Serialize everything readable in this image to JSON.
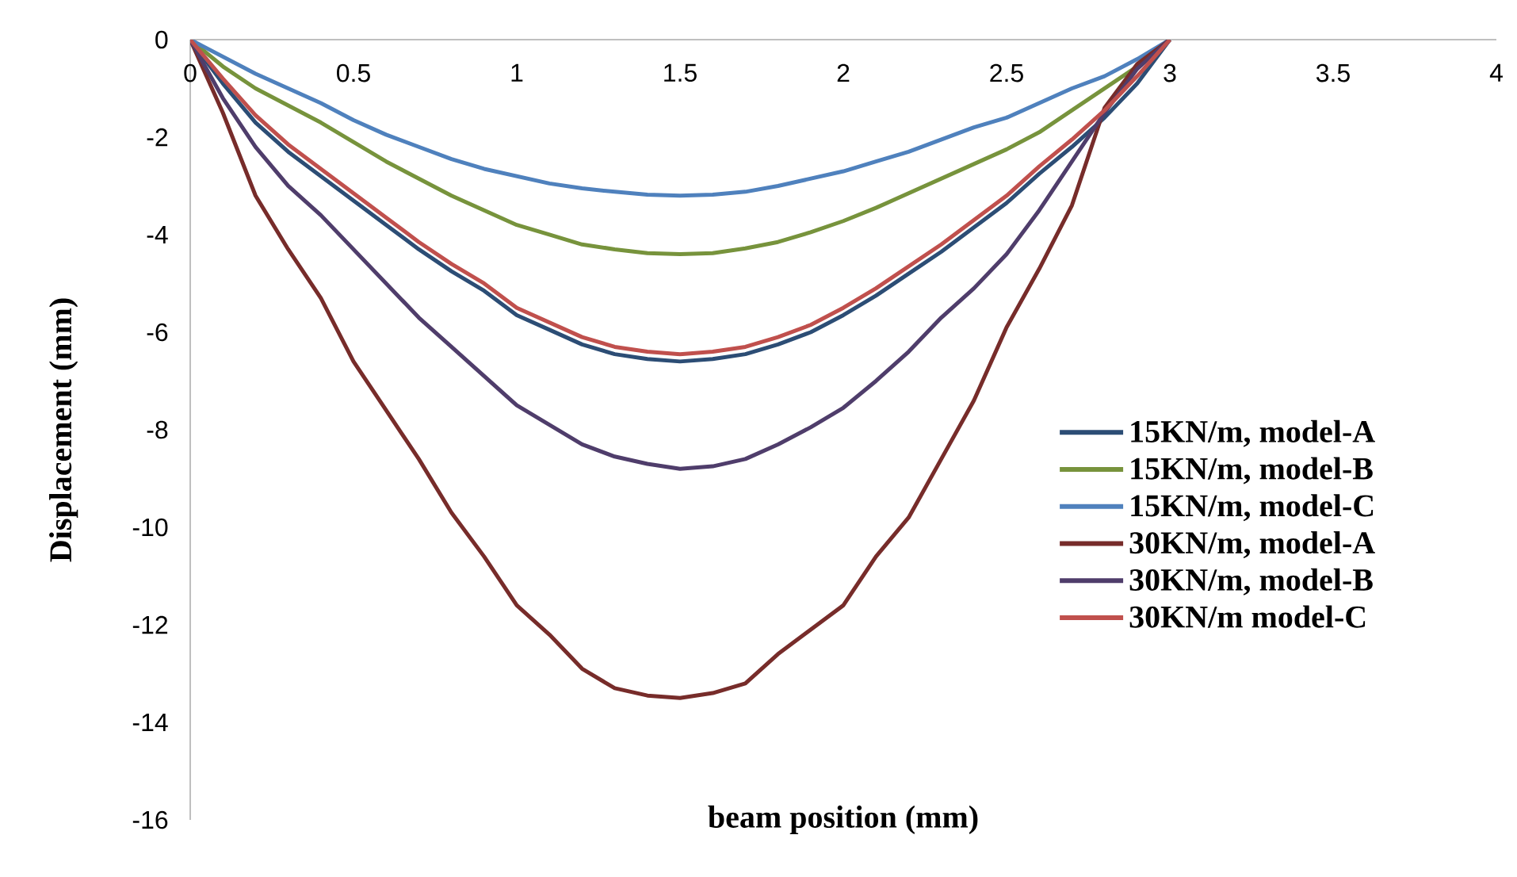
{
  "chart_data": {
    "type": "line",
    "xlabel": "beam position (mm)",
    "ylabel": "Displacement (mm)",
    "x": [
      0,
      0.1,
      0.2,
      0.3,
      0.4,
      0.5,
      0.6,
      0.7,
      0.8,
      0.9,
      1,
      1.1,
      1.2,
      1.3,
      1.4,
      1.5,
      1.6,
      1.7,
      1.8,
      1.9,
      2,
      2.1,
      2.2,
      2.3,
      2.4,
      2.5,
      2.6,
      2.7,
      2.8,
      2.9,
      3
    ],
    "xlim": [
      0,
      4
    ],
    "xticks": [
      0,
      0.5,
      1,
      1.5,
      2,
      2.5,
      3,
      3.5,
      4
    ],
    "ylim": [
      -16,
      0
    ],
    "yticks": [
      -16,
      -14,
      -12,
      -10,
      -8,
      -6,
      -4,
      -2,
      0
    ],
    "legend": "right",
    "series": [
      {
        "name": "15KN/m, model-A",
        "color": "#2c4d75",
        "values": [
          0,
          -0.9,
          -1.7,
          -2.3,
          -2.8,
          -3.3,
          -3.8,
          -4.3,
          -4.75,
          -5.15,
          -5.65,
          -5.95,
          -6.25,
          -6.45,
          -6.55,
          -6.6,
          -6.55,
          -6.45,
          -6.25,
          -6.0,
          -5.65,
          -5.25,
          -4.8,
          -4.35,
          -3.85,
          -3.35,
          -2.75,
          -2.2,
          -1.6,
          -0.9,
          0
        ]
      },
      {
        "name": "15KN/m, model-B",
        "color": "#77933c",
        "values": [
          0,
          -0.55,
          -1.0,
          -1.35,
          -1.7,
          -2.1,
          -2.5,
          -2.85,
          -3.2,
          -3.5,
          -3.8,
          -4.0,
          -4.2,
          -4.3,
          -4.38,
          -4.4,
          -4.38,
          -4.28,
          -4.15,
          -3.95,
          -3.72,
          -3.45,
          -3.15,
          -2.85,
          -2.55,
          -2.25,
          -1.9,
          -1.45,
          -1.0,
          -0.55,
          0
        ]
      },
      {
        "name": "15KN/m, model-C",
        "color": "#4f81bd",
        "values": [
          0,
          -0.35,
          -0.7,
          -1.0,
          -1.3,
          -1.65,
          -1.95,
          -2.2,
          -2.45,
          -2.65,
          -2.8,
          -2.95,
          -3.05,
          -3.12,
          -3.18,
          -3.2,
          -3.18,
          -3.12,
          -3.0,
          -2.85,
          -2.7,
          -2.5,
          -2.3,
          -2.05,
          -1.8,
          -1.6,
          -1.3,
          -1.0,
          -0.75,
          -0.4,
          0
        ]
      },
      {
        "name": "30KN/m, model-A",
        "color": "#772c2a",
        "values": [
          0,
          -1.5,
          -3.2,
          -4.3,
          -5.3,
          -6.6,
          -7.6,
          -8.6,
          -9.7,
          -10.6,
          -11.6,
          -12.2,
          -12.9,
          -13.3,
          -13.45,
          -13.5,
          -13.4,
          -13.2,
          -12.6,
          -12.1,
          -11.6,
          -10.6,
          -9.8,
          -8.6,
          -7.4,
          -5.9,
          -4.7,
          -3.4,
          -1.4,
          -0.5,
          0
        ]
      },
      {
        "name": "30KN/m, model-B",
        "color": "#4f3d6b",
        "values": [
          0,
          -1.2,
          -2.2,
          -3.0,
          -3.6,
          -4.3,
          -5.0,
          -5.7,
          -6.3,
          -6.9,
          -7.5,
          -7.9,
          -8.3,
          -8.55,
          -8.7,
          -8.8,
          -8.75,
          -8.6,
          -8.3,
          -7.95,
          -7.55,
          -7.0,
          -6.4,
          -5.7,
          -5.1,
          -4.4,
          -3.5,
          -2.5,
          -1.5,
          -0.6,
          0
        ]
      },
      {
        "name": "30KN/m model-C",
        "color": "#c0504d",
        "values": [
          0,
          -0.8,
          -1.55,
          -2.15,
          -2.65,
          -3.15,
          -3.65,
          -4.15,
          -4.6,
          -5.0,
          -5.5,
          -5.8,
          -6.1,
          -6.3,
          -6.4,
          -6.45,
          -6.4,
          -6.3,
          -6.1,
          -5.85,
          -5.5,
          -5.1,
          -4.65,
          -4.2,
          -3.7,
          -3.2,
          -2.6,
          -2.05,
          -1.45,
          -0.75,
          0
        ]
      }
    ]
  }
}
